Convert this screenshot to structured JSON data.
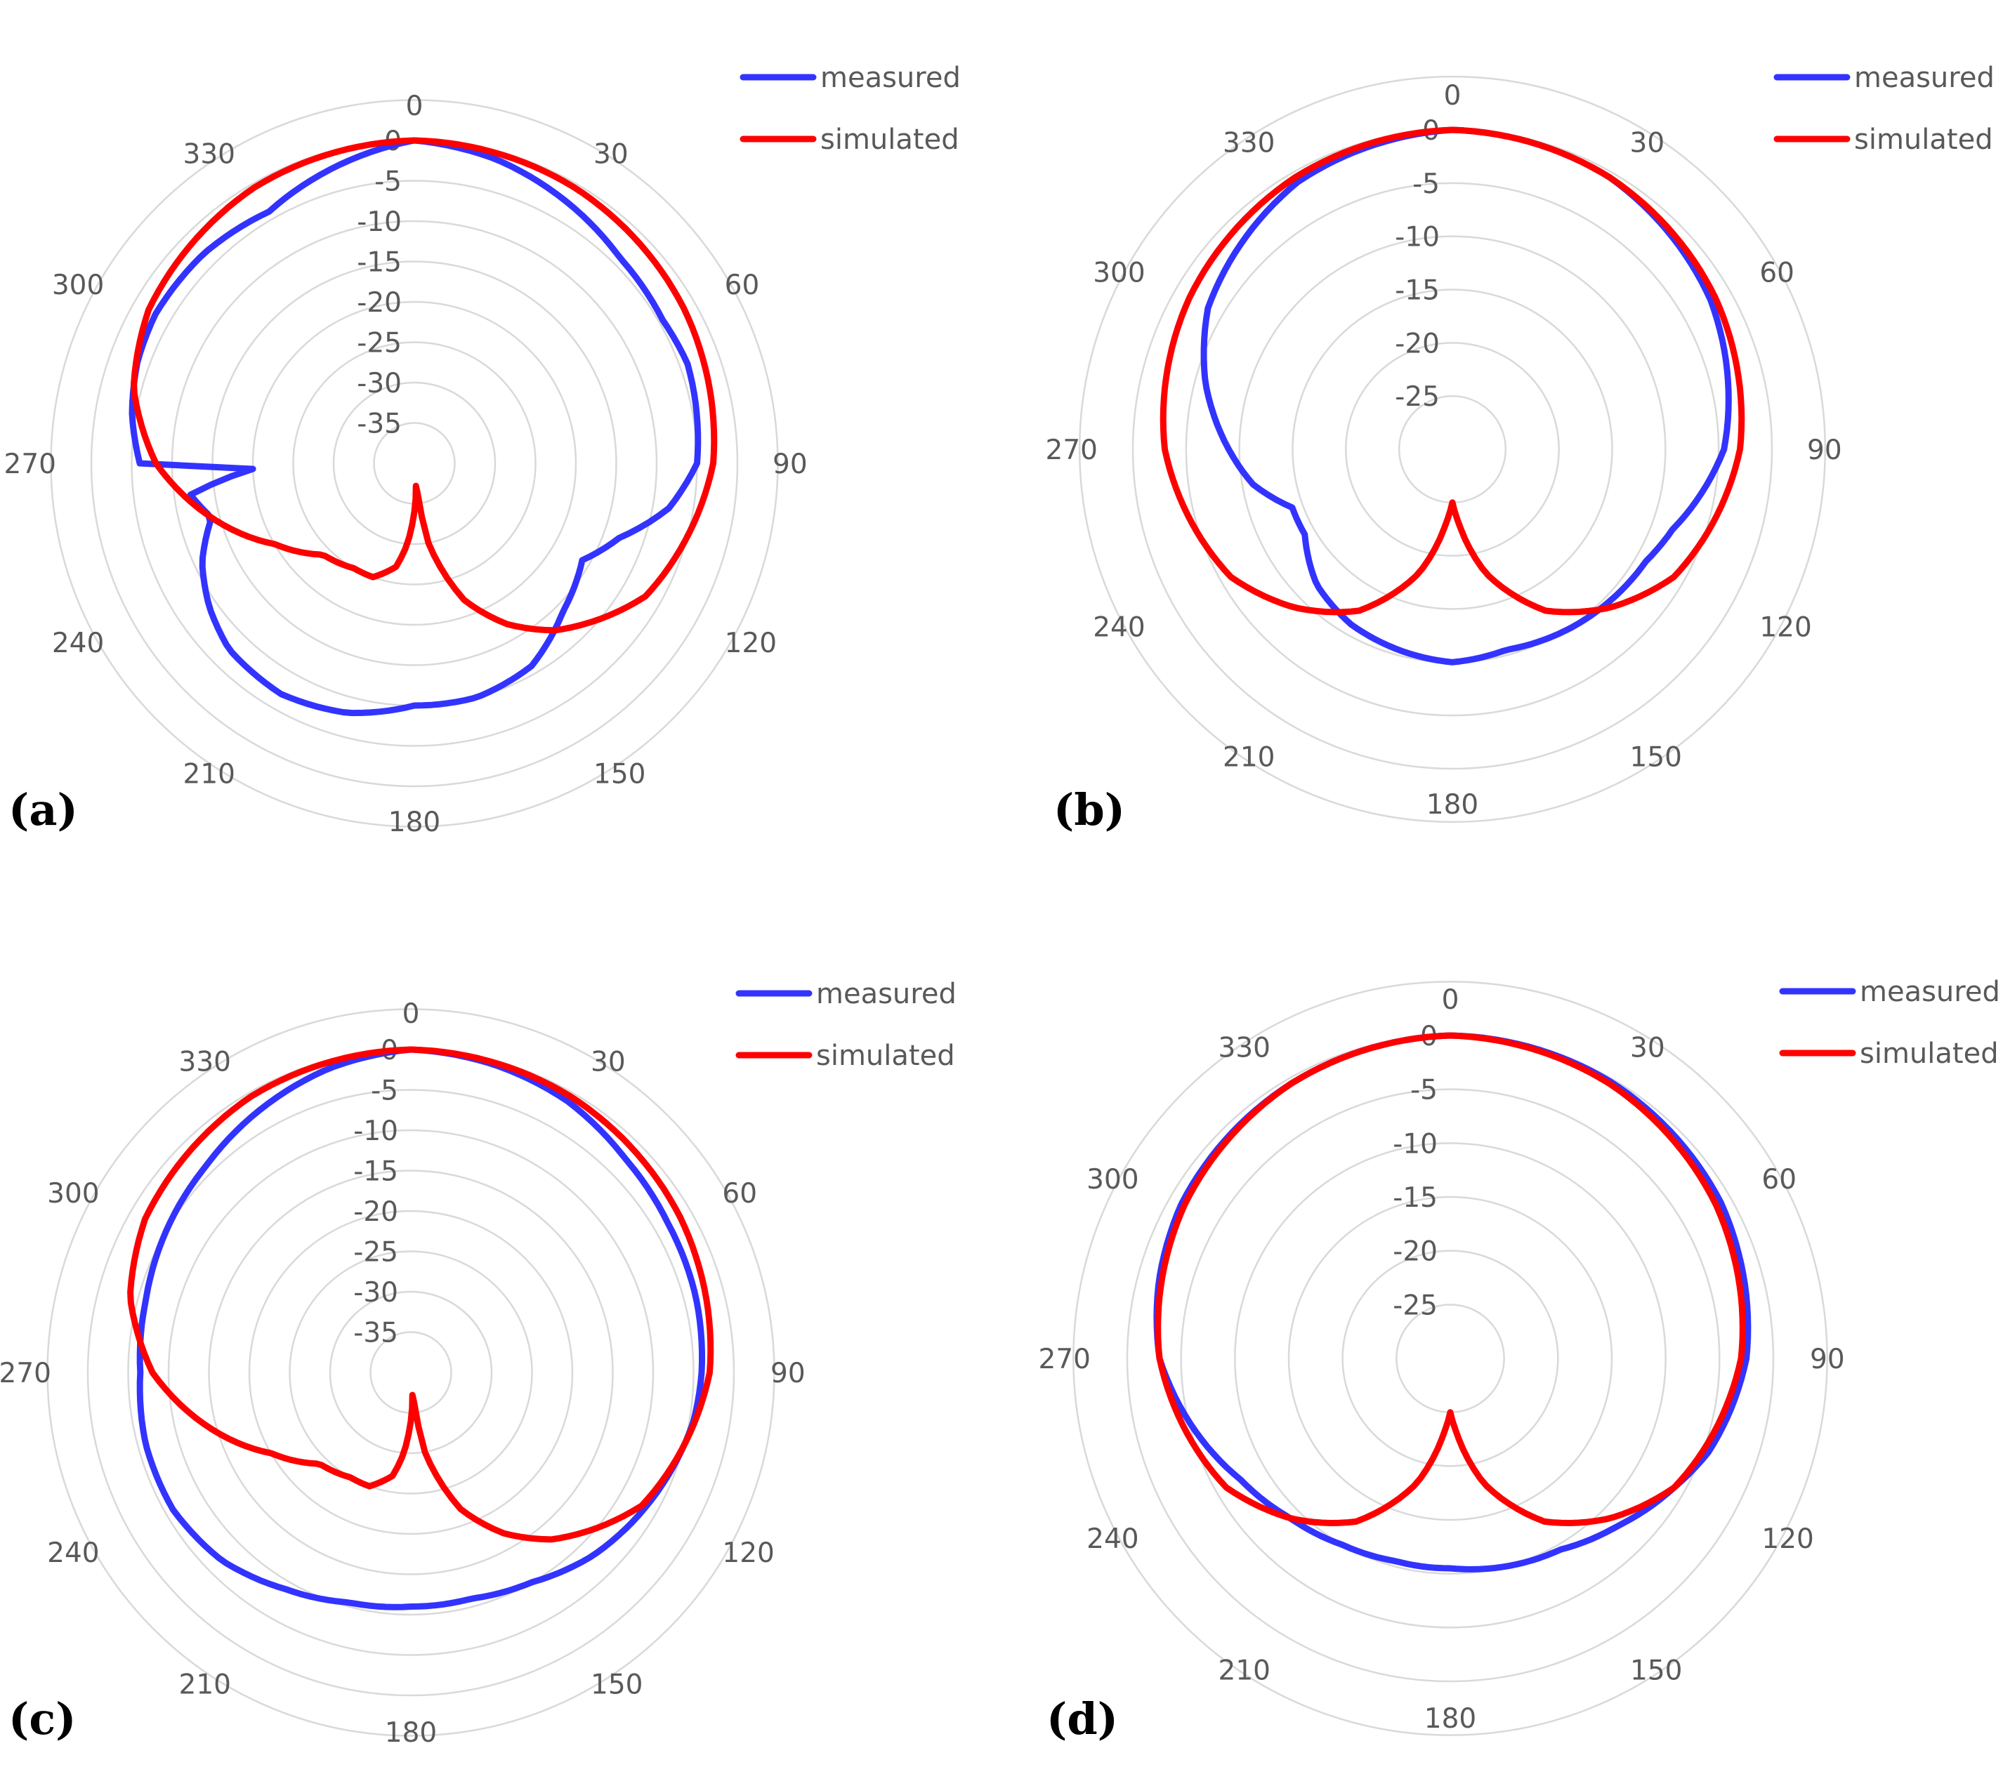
{
  "colors": {
    "measured": "#3333ff",
    "simulated": "#ff0000",
    "grid": "#d9d9d9",
    "tick": "#595959"
  },
  "chart_data": [
    {
      "type": "polar-line",
      "panel_label": "(a)",
      "angle_ticks": [
        "0",
        "30",
        "60",
        "90",
        "120",
        "150",
        "180",
        "210",
        "240",
        "270",
        "300",
        "330"
      ],
      "radial_ticks": [
        "0",
        "-5",
        "-10",
        "-15",
        "-20",
        "-25",
        "-30",
        "-35"
      ],
      "rlim": [
        -40,
        0
      ],
      "legend": [
        "measured",
        "simulated"
      ],
      "legend_position": "top-right",
      "series": [
        {
          "name": "measured",
          "theta": [
            0,
            15,
            30,
            45,
            60,
            70,
            80,
            90,
            100,
            110,
            120,
            135,
            150,
            165,
            180,
            195,
            210,
            225,
            235,
            245,
            255,
            262,
            268,
            270,
            280,
            290,
            300,
            315,
            330,
            345,
            360
          ],
          "values": [
            0,
            -1,
            -2.5,
            -4,
            -4.5,
            -4,
            -4.5,
            -5,
            -8,
            -13,
            -16,
            -14,
            -11,
            -10,
            -10,
            -8,
            -7,
            -7.5,
            -9,
            -11,
            -14,
            -12,
            -20,
            -6,
            -4.5,
            -3.5,
            -3,
            -3.2,
            -4,
            -2,
            0
          ]
        },
        {
          "name": "simulated",
          "theta": [
            0,
            30,
            60,
            90,
            120,
            140,
            150,
            160,
            170,
            175,
            180,
            185,
            190,
            200,
            210,
            225,
            240,
            255,
            270,
            285,
            300,
            330,
            360
          ],
          "values": [
            0,
            -0.5,
            -1.5,
            -3,
            -7,
            -13,
            -17,
            -22,
            -30,
            -38,
            -34,
            -30,
            -27,
            -25,
            -25,
            -24,
            -20,
            -14,
            -8,
            -4,
            -2,
            -0.5,
            0
          ]
        }
      ]
    },
    {
      "type": "polar-line",
      "panel_label": "(b)",
      "angle_ticks": [
        "0",
        "30",
        "60",
        "90",
        "120",
        "150",
        "180",
        "210",
        "240",
        "270",
        "300",
        "330"
      ],
      "radial_ticks": [
        "0",
        "-5",
        "-10",
        "-15",
        "-20",
        "-25"
      ],
      "rlim": [
        -30,
        0
      ],
      "legend": [
        "measured",
        "simulated"
      ],
      "legend_position": "top-right",
      "series": [
        {
          "name": "measured",
          "theta": [
            0,
            30,
            60,
            90,
            110,
            120,
            135,
            150,
            165,
            180,
            195,
            210,
            225,
            240,
            250,
            260,
            270,
            285,
            300,
            330,
            360
          ],
          "values": [
            0,
            -0.5,
            -2,
            -4.5,
            -8,
            -9,
            -9.5,
            -10,
            -10.5,
            -10,
            -10.5,
            -11,
            -12,
            -14,
            -14,
            -11,
            -9,
            -6,
            -3.5,
            -1,
            0
          ]
        },
        {
          "name": "simulated",
          "theta": [
            0,
            30,
            60,
            90,
            120,
            135,
            150,
            165,
            175,
            180,
            185,
            195,
            210,
            225,
            240,
            270,
            300,
            330,
            360
          ],
          "values": [
            0,
            -0.5,
            -1.5,
            -3,
            -6,
            -9,
            -12.5,
            -18,
            -23,
            -25,
            -23,
            -18,
            -12.5,
            -9,
            -6,
            -3,
            -1.5,
            -0.5,
            0
          ]
        }
      ]
    },
    {
      "type": "polar-line",
      "panel_label": "(c)",
      "angle_ticks": [
        "0",
        "30",
        "60",
        "90",
        "120",
        "150",
        "180",
        "210",
        "240",
        "270",
        "300",
        "330"
      ],
      "radial_ticks": [
        "0",
        "-5",
        "-10",
        "-15",
        "-20",
        "-25",
        "-30",
        "-35"
      ],
      "rlim": [
        -40,
        0
      ],
      "legend": [
        "measured",
        "simulated"
      ],
      "legend_position": "top-right",
      "series": [
        {
          "name": "measured",
          "theta": [
            0,
            15,
            30,
            45,
            60,
            75,
            90,
            100,
            110,
            120,
            135,
            150,
            165,
            180,
            195,
            210,
            225,
            240,
            255,
            270,
            285,
            300,
            315,
            330,
            345,
            360
          ],
          "values": [
            0,
            -0.5,
            -1.2,
            -2.5,
            -3.2,
            -3.5,
            -4,
            -4.5,
            -5.5,
            -6.5,
            -8,
            -10,
            -11,
            -11,
            -10.5,
            -9,
            -7,
            -6,
            -6,
            -6.5,
            -6,
            -5,
            -4,
            -2.5,
            -1,
            0
          ]
        },
        {
          "name": "simulated",
          "theta": [
            0,
            30,
            60,
            90,
            120,
            140,
            150,
            160,
            170,
            175,
            180,
            185,
            190,
            200,
            210,
            225,
            240,
            255,
            270,
            285,
            300,
            330,
            360
          ],
          "values": [
            0,
            -0.5,
            -1.5,
            -3,
            -7,
            -13,
            -17,
            -22,
            -30,
            -38,
            -34,
            -30,
            -27,
            -25,
            -25,
            -24,
            -20,
            -14,
            -8,
            -4,
            -2,
            -0.5,
            0
          ]
        }
      ]
    },
    {
      "type": "polar-line",
      "panel_label": "(d)",
      "angle_ticks": [
        "0",
        "30",
        "60",
        "90",
        "120",
        "150",
        "180",
        "210",
        "240",
        "270",
        "300",
        "330"
      ],
      "radial_ticks": [
        "0",
        "-5",
        "-10",
        "-15",
        "-20",
        "-25"
      ],
      "rlim": [
        -30,
        0
      ],
      "legend": [
        "measured",
        "simulated"
      ],
      "legend_position": "top-right",
      "series": [
        {
          "name": "measured",
          "theta": [
            0,
            30,
            60,
            90,
            110,
            120,
            135,
            150,
            165,
            180,
            195,
            210,
            225,
            240,
            250,
            260,
            270,
            285,
            300,
            330,
            360
          ],
          "values": [
            0,
            -0.3,
            -1,
            -2.5,
            -4.5,
            -6,
            -8,
            -9.5,
            -10,
            -10.5,
            -10.5,
            -10,
            -9,
            -7.5,
            -6,
            -4.5,
            -3,
            -2,
            -1.2,
            -0.5,
            0
          ]
        },
        {
          "name": "simulated",
          "theta": [
            0,
            30,
            60,
            90,
            120,
            135,
            150,
            165,
            175,
            180,
            185,
            195,
            210,
            225,
            240,
            270,
            300,
            330,
            360
          ],
          "values": [
            0,
            -0.5,
            -1.5,
            -3,
            -6,
            -9,
            -12.5,
            -18,
            -23,
            -25,
            -23,
            -18,
            -12.5,
            -9,
            -6,
            -3,
            -1.5,
            -0.5,
            0
          ]
        }
      ]
    }
  ]
}
